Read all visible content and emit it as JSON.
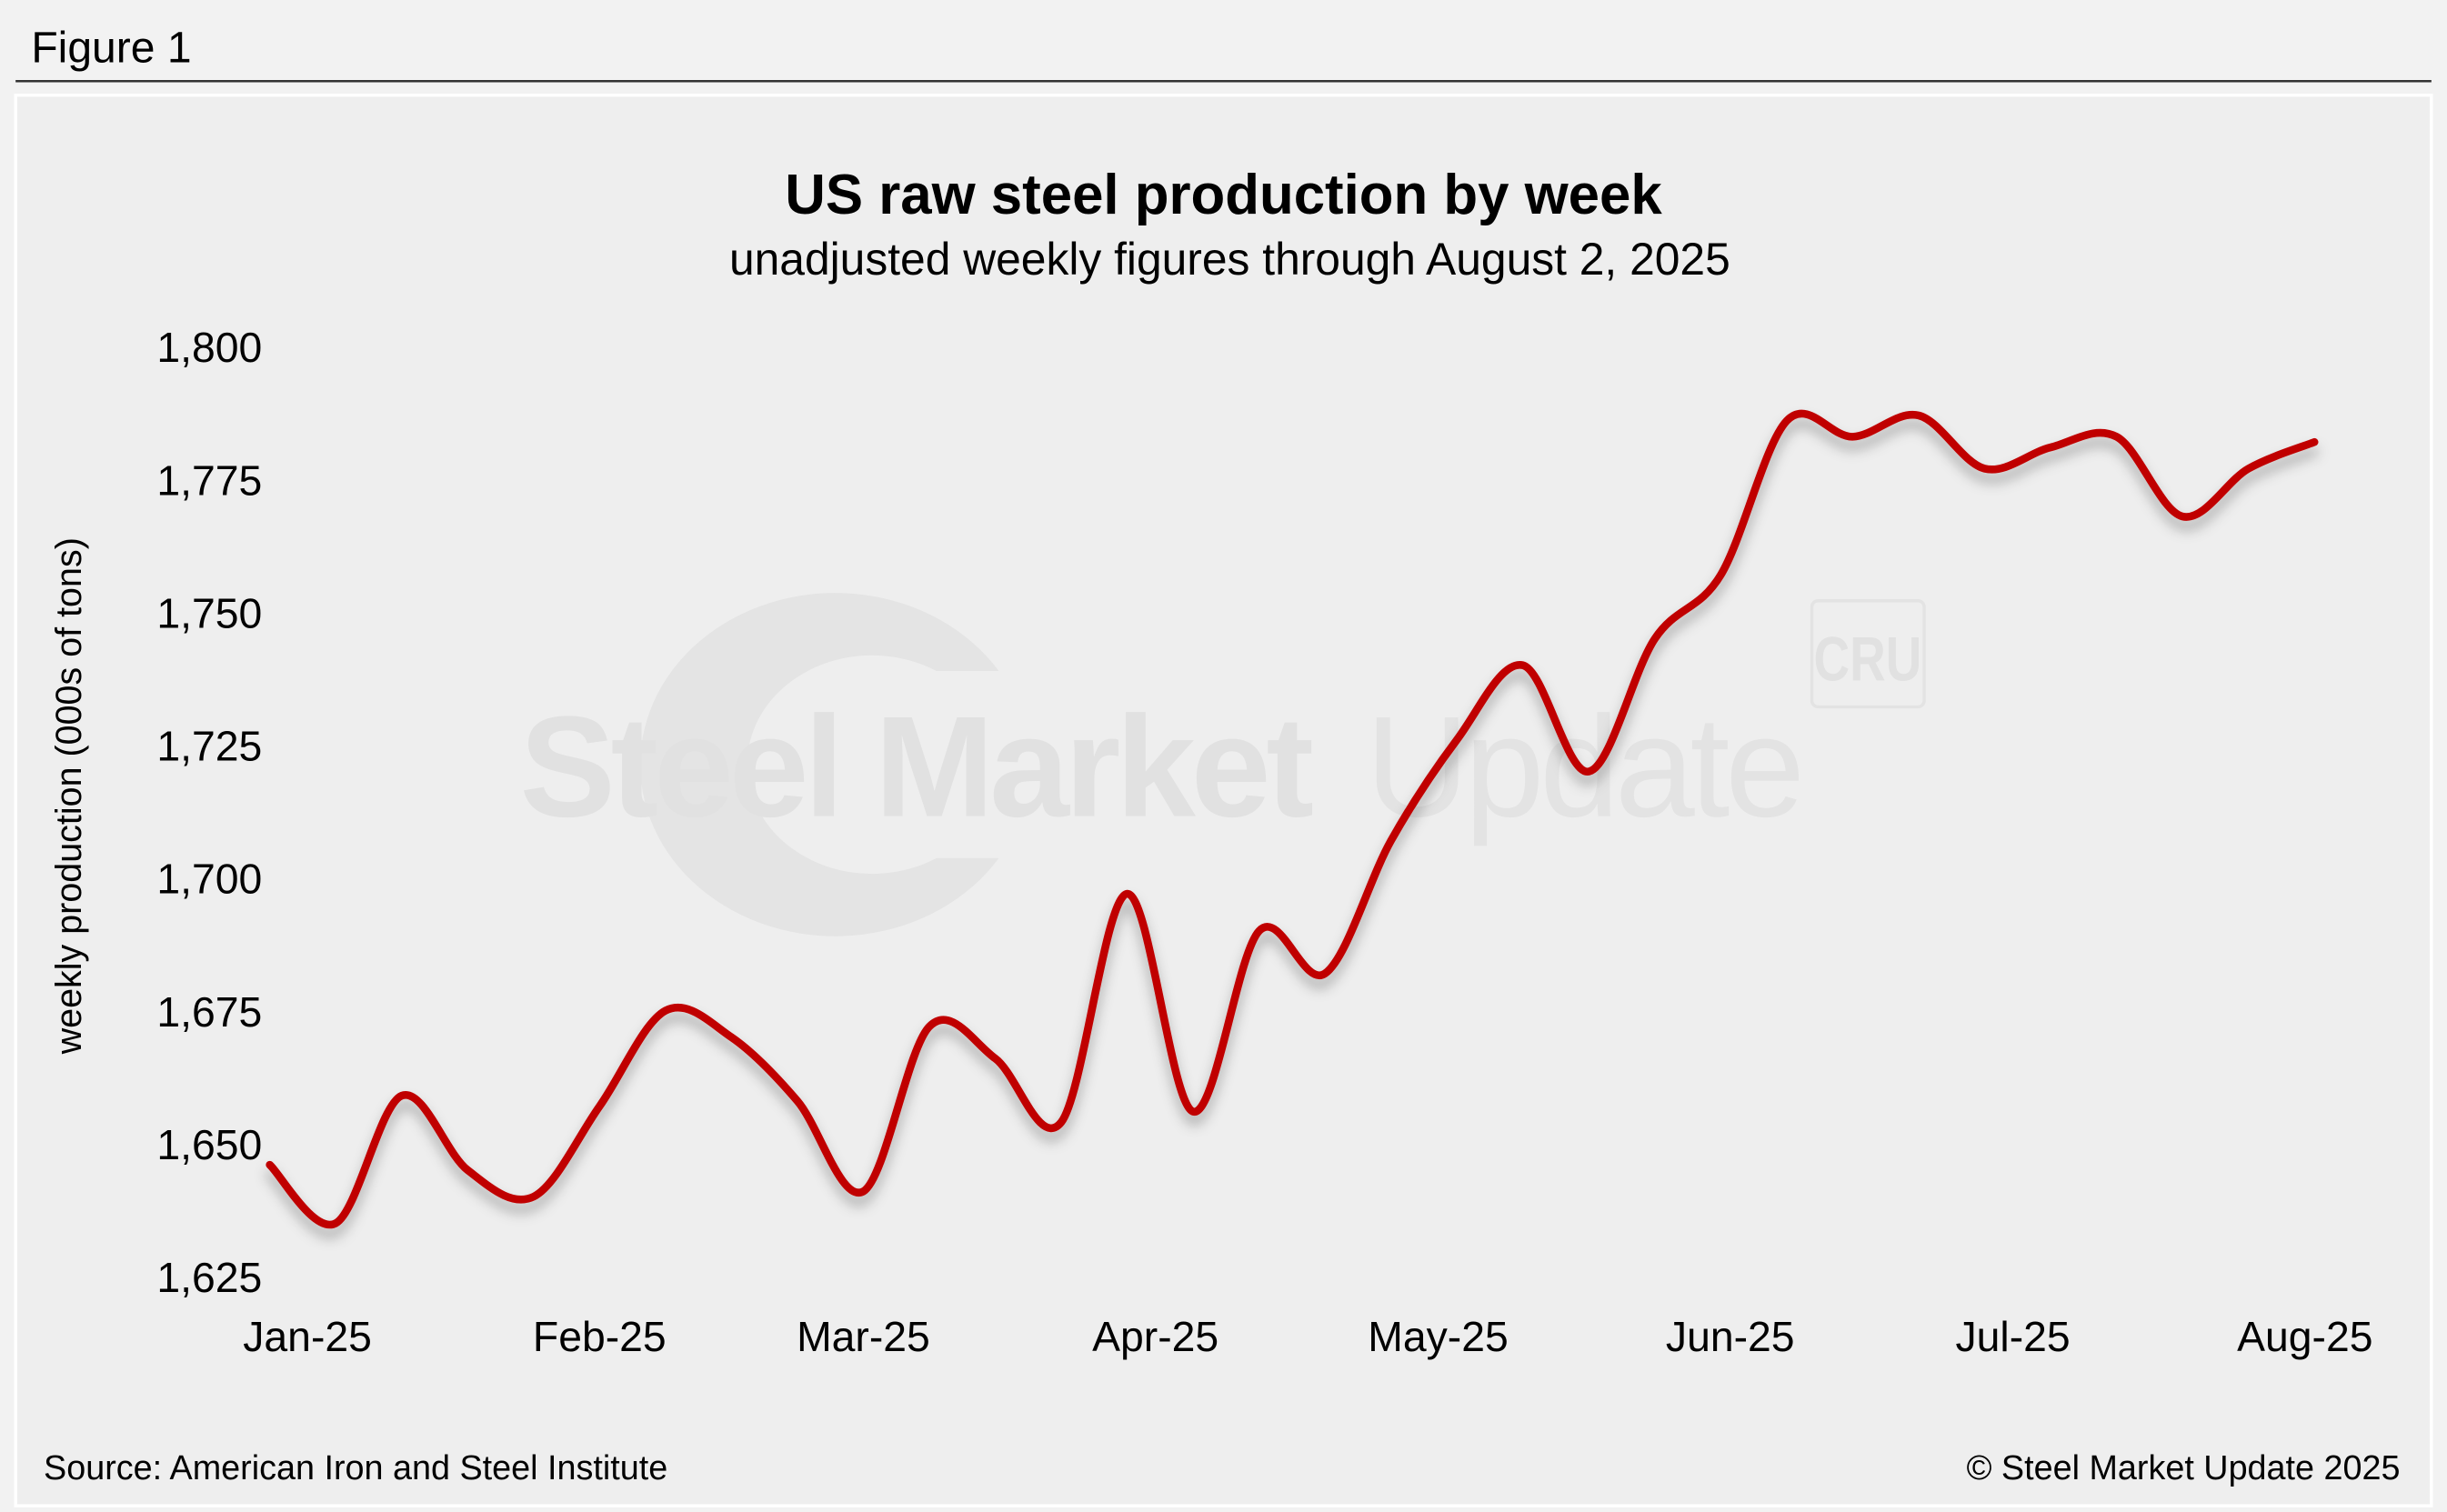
{
  "figure_label": "Figure 1",
  "source": "Source: American Iron and Steel Institute",
  "copyright": "© Steel Market Update 2025",
  "watermark": {
    "brand_bold": "Steel Market",
    "brand_light": "Update",
    "logo": "CRU"
  },
  "colors": {
    "line": "#c00000",
    "panel": "#eeeeee",
    "page": "#f2f2f2"
  },
  "chart_data": {
    "type": "line",
    "title": "US raw steel production by week",
    "subtitle": "unadjusted weekly figures through August 2, 2025",
    "xlabel": "",
    "ylabel": "weekly production (000s of tons)",
    "ylim": [
      1625,
      1800
    ],
    "yticks": [
      1625,
      1650,
      1675,
      1700,
      1725,
      1750,
      1775,
      1800
    ],
    "ytick_labels": [
      "1,625",
      "1,650",
      "1,675",
      "1,700",
      "1,725",
      "1,750",
      "1,775",
      "1,800"
    ],
    "x_unit": "days since Jan 1, 2025",
    "xlim": [
      0,
      212
    ],
    "xticks": [
      0,
      31,
      59,
      90,
      120,
      151,
      181,
      212
    ],
    "xtick_labels": [
      "Jan-25",
      "Feb-25",
      "Mar-25",
      "Apr-25",
      "May-25",
      "Jun-25",
      "Jul-25",
      "Aug-25"
    ],
    "grid": false,
    "legend": "none",
    "series": [
      {
        "name": "weekly production",
        "x": [
          -4,
          3,
          10,
          17,
          24,
          31,
          38,
          45,
          52,
          59,
          66,
          73,
          80,
          87,
          94,
          101,
          108,
          115,
          122,
          129,
          136,
          143,
          150,
          157,
          164,
          171,
          178,
          185,
          192,
          199,
          206,
          213
        ],
        "values": [
          1646,
          1635,
          1659,
          1645,
          1640,
          1657,
          1675,
          1670,
          1658,
          1641,
          1672,
          1666,
          1654,
          1697,
          1656,
          1690,
          1682,
          1707,
          1726,
          1740,
          1720,
          1745,
          1757,
          1786,
          1783,
          1787,
          1777,
          1781,
          1783,
          1768,
          1777,
          1782
        ]
      }
    ]
  }
}
